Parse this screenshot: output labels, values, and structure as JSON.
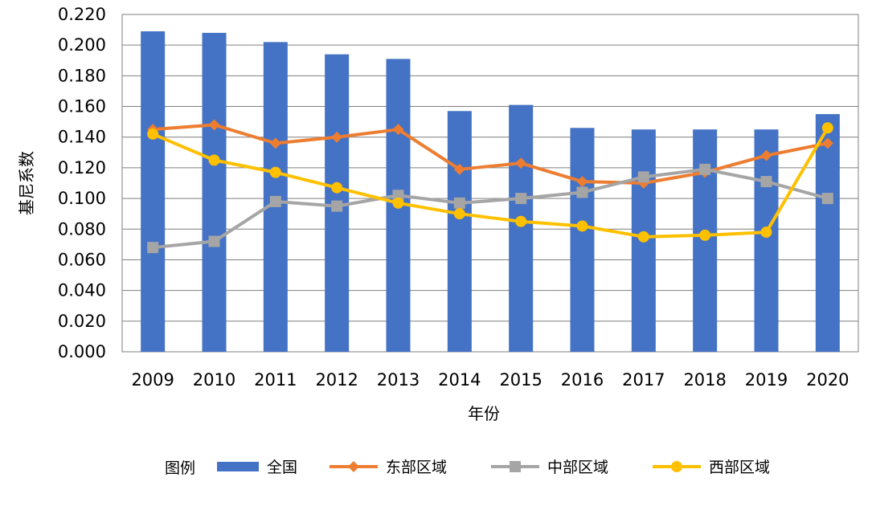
{
  "chart_data": {
    "type": "bar+line",
    "xlabel": "年份",
    "ylabel": "基尼系数",
    "ylim": [
      0,
      0.22
    ],
    "ytick_step": 0.02,
    "yticks": [
      "0.000",
      "0.020",
      "0.040",
      "0.060",
      "0.080",
      "0.100",
      "0.120",
      "0.140",
      "0.160",
      "0.180",
      "0.200",
      "0.220"
    ],
    "categories": [
      "2009",
      "2010",
      "2011",
      "2012",
      "2013",
      "2014",
      "2015",
      "2016",
      "2017",
      "2018",
      "2019",
      "2020"
    ],
    "grid": "horizontal",
    "legend_placement": "bottom",
    "legend_title": "图例",
    "series": [
      {
        "name": "全国",
        "kind": "bar",
        "color": "#4472C4",
        "values": [
          0.209,
          0.208,
          0.202,
          0.194,
          0.191,
          0.157,
          0.161,
          0.146,
          0.145,
          0.145,
          0.145,
          0.155
        ]
      },
      {
        "name": "东部区域",
        "kind": "line",
        "marker": "diamond",
        "color": "#ED7D31",
        "values": [
          0.145,
          0.148,
          0.136,
          0.14,
          0.145,
          0.119,
          0.123,
          0.111,
          0.11,
          0.117,
          0.128,
          0.136
        ]
      },
      {
        "name": "中部区域",
        "kind": "line",
        "marker": "square",
        "color": "#A5A5A5",
        "values": [
          0.068,
          0.072,
          0.098,
          0.095,
          0.102,
          0.097,
          0.1,
          0.104,
          0.114,
          0.119,
          0.111,
          0.1
        ]
      },
      {
        "name": "西部区域",
        "kind": "line",
        "marker": "circle",
        "color": "#FFC000",
        "values": [
          0.142,
          0.125,
          0.117,
          0.107,
          0.097,
          0.09,
          0.085,
          0.082,
          0.075,
          0.076,
          0.078,
          0.146
        ]
      }
    ]
  }
}
